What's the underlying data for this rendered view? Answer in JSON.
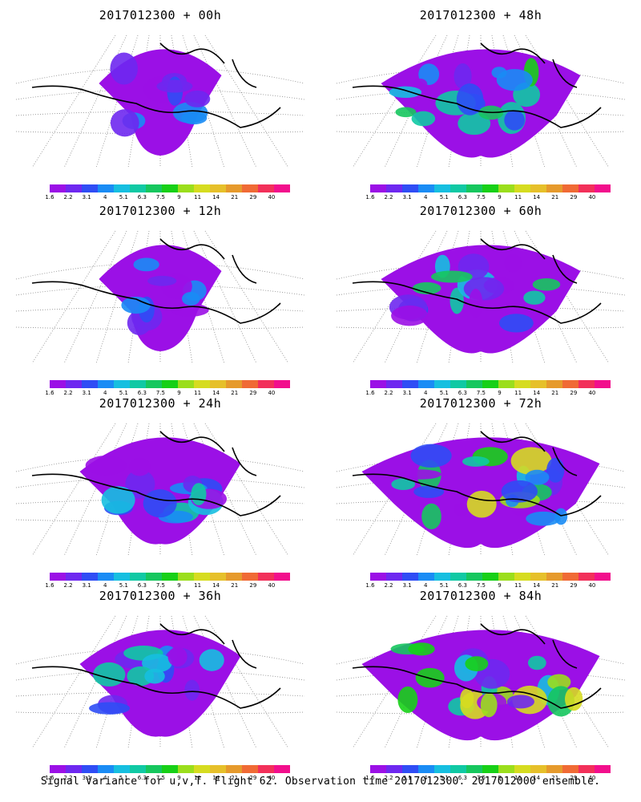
{
  "panels": [
    {
      "title": "2017012300 + 00h",
      "intensity": 1
    },
    {
      "title": "2017012300 + 48h",
      "intensity": 3
    },
    {
      "title": "2017012300 + 12h",
      "intensity": 1
    },
    {
      "title": "2017012300 + 60h",
      "intensity": 3
    },
    {
      "title": "2017012300 + 24h",
      "intensity": 2
    },
    {
      "title": "2017012300 + 72h",
      "intensity": 4
    },
    {
      "title": "2017012300 + 36h",
      "intensity": 2
    },
    {
      "title": "2017012300 + 84h",
      "intensity": 4
    }
  ],
  "scale": {
    "colors": [
      "#9b10e6",
      "#6e28f0",
      "#2f4df5",
      "#1a8cf5",
      "#16bfe0",
      "#10c9a4",
      "#16c75e",
      "#17d017",
      "#9bde1c",
      "#d6dc20",
      "#e6c02a",
      "#e69a2c",
      "#f06a35",
      "#f2305a",
      "#f20f8c"
    ],
    "labels": [
      "1.6",
      "2.2",
      "3.1",
      "4",
      "5.1",
      "6.3",
      "7.5",
      "9",
      "11",
      "14",
      "21",
      "29",
      "40"
    ]
  },
  "footer": "Signal Variance for u,v,T. Flight 62. Observation time 2017012300. 2017012000 ensemble."
}
